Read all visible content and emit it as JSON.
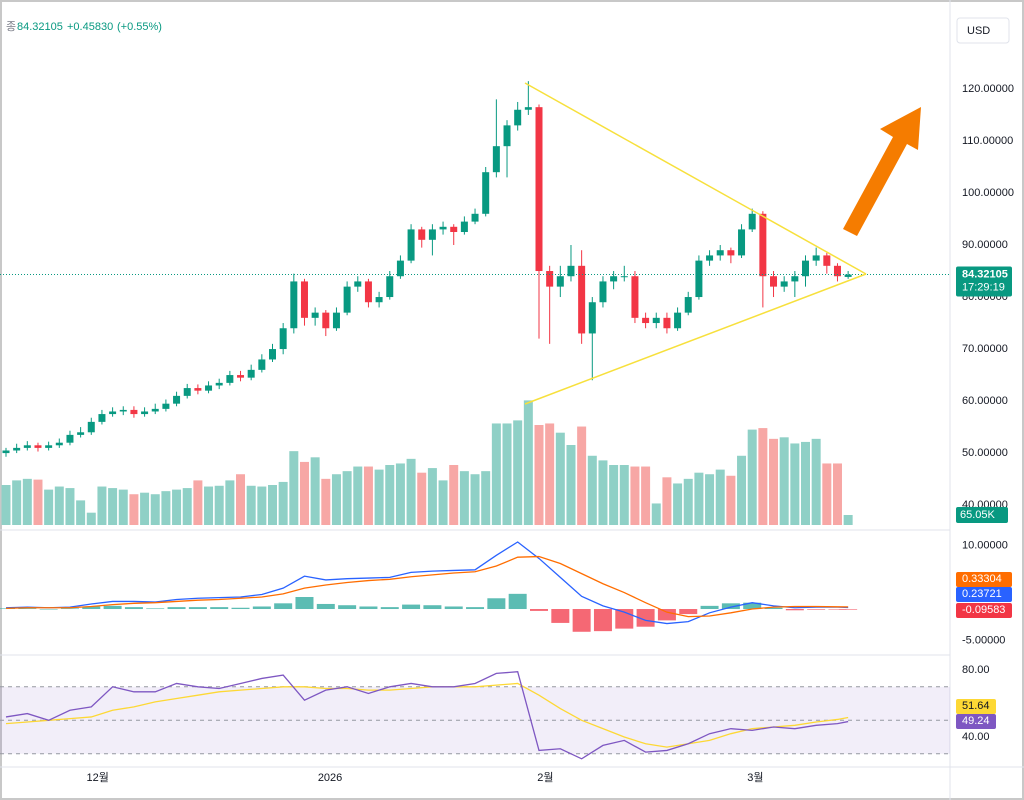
{
  "header": {
    "close_label": "종",
    "change": "+0.45830",
    "change_pct": "(+0.55%)",
    "currency": "USD"
  },
  "chart_data": {
    "type": "candlestick",
    "xticks": [
      {
        "value": 8.6,
        "label": "12월"
      },
      {
        "value": 30.4,
        "label": "2026"
      },
      {
        "value": 50.6,
        "label": "2월"
      },
      {
        "value": 70.3,
        "label": "3월"
      }
    ],
    "ylim": [
      35.6,
      137.1
    ],
    "yticks": [
      {
        "value": 40,
        "label": "40.00000"
      },
      {
        "value": 50,
        "label": "50.00000"
      },
      {
        "value": 60,
        "label": "60.00000"
      },
      {
        "value": 70,
        "label": "70.00000"
      },
      {
        "value": 80,
        "label": "80.00000"
      },
      {
        "value": 90,
        "label": "90.00000"
      },
      {
        "value": 100,
        "label": "100.00000"
      },
      {
        "value": 110,
        "label": "110.00000"
      },
      {
        "value": 120,
        "label": "120.00000"
      }
    ],
    "up_color": "#089981",
    "down_color": "#f23645",
    "countdown": "17:29:19",
    "open": [
      50,
      50.5,
      51,
      51.5,
      51,
      51.5,
      52,
      53.5,
      54,
      56,
      57.5,
      58,
      58.3,
      57.5,
      58,
      58.5,
      59.5,
      61,
      62.5,
      62,
      63,
      63.5,
      65,
      64.5,
      66,
      68,
      70,
      74,
      83,
      76,
      77,
      74,
      77,
      82,
      83,
      79,
      80,
      84,
      87,
      93,
      91,
      93,
      93.5,
      92.5,
      94.5,
      96,
      104,
      109,
      113,
      116,
      116.5,
      85,
      82,
      84,
      86,
      73,
      79,
      83,
      84,
      84,
      76,
      75,
      76,
      74,
      77,
      80,
      87,
      88,
      89,
      88,
      93,
      96,
      84,
      82,
      83,
      84,
      87,
      88,
      86,
      83.86275
    ],
    "high": [
      51,
      51.8,
      52.3,
      52,
      52.2,
      52.8,
      54.3,
      55,
      56.8,
      58.3,
      58.8,
      59,
      59,
      58.8,
      59.5,
      60.3,
      61.8,
      63.3,
      63.2,
      63.8,
      64.3,
      65.8,
      65.8,
      67,
      69,
      71,
      75,
      84.5,
      83.5,
      78,
      77.5,
      78,
      83,
      84,
      83.5,
      81,
      85,
      88,
      94,
      93.5,
      94,
      94.5,
      94,
      95.5,
      97,
      105,
      118,
      114,
      117.5,
      121.5,
      117,
      86,
      86,
      90,
      89,
      80,
      84,
      85,
      86,
      85,
      77,
      77,
      77,
      78,
      81,
      88,
      89,
      90,
      89.5,
      94,
      97,
      96.5,
      85,
      84,
      85,
      88,
      89.5,
      88.5,
      86.5,
      85
    ],
    "low": [
      49.3,
      50,
      50.5,
      50.3,
      50.5,
      51,
      51.5,
      53,
      53.5,
      55.5,
      57,
      57.3,
      56.8,
      57,
      57.5,
      58,
      59,
      60.5,
      61.3,
      61.5,
      62.3,
      63,
      63.8,
      64,
      65.5,
      67.5,
      69,
      73,
      74.5,
      74.5,
      72.5,
      73.5,
      76.5,
      81,
      78,
      78,
      79.5,
      83.5,
      86.5,
      89.5,
      88,
      92,
      90,
      92,
      94,
      95.5,
      103,
      103,
      112,
      115,
      72,
      71,
      80,
      83,
      71,
      64,
      78,
      81.5,
      83,
      75,
      74,
      74,
      73,
      73.5,
      76.5,
      79.5,
      86,
      87,
      86.5,
      87.5,
      92.5,
      78,
      80,
      81,
      80,
      82,
      86,
      84.5,
      83,
      83.5
    ],
    "close": [
      50.5,
      51,
      51.5,
      51,
      51.5,
      52,
      53.5,
      54,
      56,
      57.5,
      58,
      58.3,
      57.5,
      58,
      58.5,
      59.5,
      61,
      62.5,
      62,
      63,
      63.5,
      65,
      64.5,
      66,
      68,
      70,
      74,
      83,
      76,
      77,
      74,
      77,
      82,
      83,
      79,
      80,
      84,
      87,
      93,
      91,
      93,
      93.5,
      92.5,
      94.5,
      96,
      104,
      109,
      113,
      116,
      116.5,
      85,
      82,
      84,
      86,
      73,
      79,
      83,
      84,
      84,
      76,
      75,
      76,
      74,
      77,
      80,
      87,
      88,
      89,
      88,
      93,
      96,
      84,
      82,
      83,
      84,
      87,
      88,
      86,
      84,
      84.32105
    ],
    "volume": {
      "ylim": [
        0,
        1300
      ],
      "up_color": "#8fd0c6",
      "down_color": "#f7a7a5",
      "last_label": "65.05K",
      "values": [
        260,
        290,
        300,
        295,
        230,
        250,
        240,
        160,
        80,
        250,
        240,
        230,
        200,
        210,
        200,
        220,
        230,
        240,
        290,
        250,
        255,
        290,
        330,
        255,
        250,
        260,
        280,
        480,
        410,
        440,
        300,
        330,
        350,
        380,
        380,
        360,
        390,
        400,
        430,
        340,
        370,
        290,
        390,
        350,
        330,
        350,
        660,
        660,
        680,
        810,
        650,
        660,
        600,
        520,
        640,
        450,
        420,
        390,
        390,
        380,
        380,
        140,
        310,
        270,
        300,
        340,
        330,
        360,
        320,
        450,
        620,
        630,
        560,
        570,
        530,
        540,
        560,
        400,
        400,
        65.05
      ]
    },
    "macd": {
      "ylim": [
        -6.8,
        12.5
      ],
      "yticks": [
        {
          "value": 10,
          "label": "10.00000"
        },
        {
          "value": -5,
          "label": "-5.00000"
        }
      ],
      "macd_color": "#2962ff",
      "signal_color": "#ff6d00",
      "hist_up_color": "#26a69a",
      "hist_down_color": "#f23645",
      "x": [
        0,
        2,
        4,
        6,
        8,
        10,
        12,
        14,
        16,
        18,
        20,
        22,
        24,
        26,
        28,
        30,
        32,
        34,
        36,
        38,
        40,
        42,
        44,
        46,
        48,
        50,
        52,
        54,
        56,
        58,
        60,
        62,
        64,
        66,
        68,
        70,
        72,
        74,
        76,
        78,
        79
      ],
      "macd": [
        0.2,
        0.3,
        0.2,
        0.3,
        0.8,
        1.2,
        1.2,
        1.1,
        1.5,
        1.7,
        1.8,
        1.9,
        2.3,
        3.3,
        5.2,
        4.6,
        4.8,
        4.9,
        5.0,
        5.8,
        6.0,
        6.1,
        6.2,
        8.5,
        10.6,
        8,
        5,
        2,
        0.5,
        -0.5,
        -1.8,
        -2.3,
        -2.0,
        -0.6,
        0.3,
        1.0,
        0.5,
        0.2,
        0.3,
        0.3,
        0.23721
      ],
      "signal": [
        0.1,
        0.2,
        0.2,
        0.2,
        0.4,
        0.7,
        0.9,
        1.0,
        1.2,
        1.4,
        1.5,
        1.7,
        1.9,
        2.4,
        3.3,
        3.8,
        4.2,
        4.5,
        4.7,
        5.1,
        5.4,
        5.7,
        5.9,
        6.8,
        8.2,
        8.3,
        7.2,
        5.6,
        4,
        2.6,
        1.0,
        -0.5,
        -1.2,
        -1.1,
        -0.6,
        0,
        0.3,
        0.4,
        0.4,
        0.35,
        0.33304
      ],
      "histogram": [
        0.1,
        0.1,
        0,
        0.1,
        0.4,
        0.5,
        0.3,
        0.1,
        0.3,
        0.3,
        0.3,
        0.2,
        0.4,
        0.9,
        1.9,
        0.8,
        0.6,
        0.4,
        0.3,
        0.7,
        0.6,
        0.4,
        0.3,
        1.7,
        2.4,
        -0.3,
        -2.2,
        -3.6,
        -3.5,
        -3.1,
        -2.8,
        -1.8,
        -0.8,
        0.5,
        0.9,
        1.0,
        0.2,
        -0.2,
        -0.1,
        -0.05,
        -0.09583
      ]
    },
    "rsi": {
      "ylim": [
        23.3,
        87.8
      ],
      "yticks": [
        {
          "value": 80,
          "label": "80.00"
        },
        {
          "value": 40,
          "label": "40.00"
        }
      ],
      "bands": [
        30,
        70
      ],
      "midline": 50,
      "rsi_color": "#7e57c2",
      "ma_color": "#fdd835",
      "x": [
        0,
        2,
        4,
        6,
        8,
        10,
        12,
        14,
        16,
        18,
        20,
        22,
        24,
        26,
        28,
        30,
        32,
        34,
        36,
        38,
        40,
        42,
        44,
        46,
        48,
        50,
        52,
        54,
        56,
        58,
        60,
        62,
        64,
        66,
        68,
        70,
        72,
        74,
        76,
        78,
        79
      ],
      "rsi": [
        52,
        54,
        50,
        56,
        58,
        70,
        67,
        67,
        72,
        70,
        69,
        72,
        75,
        77,
        62,
        68,
        70,
        66,
        70,
        72,
        70,
        70,
        72,
        78,
        79,
        32,
        33,
        27,
        35,
        38,
        31,
        32,
        36,
        42,
        45,
        44,
        46,
        45,
        47,
        48,
        49.24
      ],
      "ma": [
        48,
        49,
        50,
        51,
        52,
        56,
        58,
        61,
        63,
        65,
        67,
        68,
        69,
        70,
        70,
        69,
        69,
        68,
        68,
        69,
        70,
        70,
        70,
        71,
        72,
        65,
        57,
        50,
        45,
        40,
        36,
        34,
        36,
        38,
        42,
        45,
        46,
        47,
        49,
        50.5,
        51.64
      ]
    }
  }
}
